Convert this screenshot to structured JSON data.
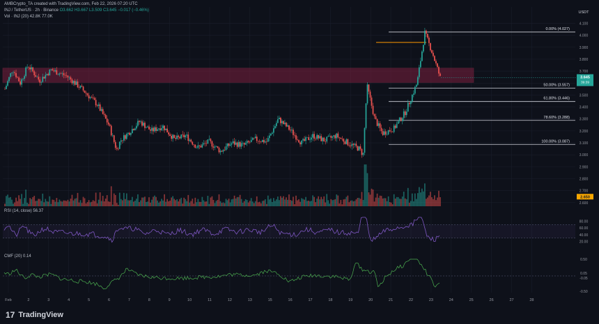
{
  "header": {
    "author_line": "AMBCrypto_TA created with TradingView.com, Feb 22, 2026 07:20 UTC",
    "symbol_line": "INJ / TetherUS · 2h · Binance",
    "ohlc": "O3.662 H3.667 L3.509 C3.645 −0.017 (−0.46%)",
    "vol_line": "Vol · INJ (20)  42.8K  77.0K",
    "rsi_label": "RSI (14, close)  56.37",
    "cmf_label": "CMF (20)  0.14",
    "currency": "USDT"
  },
  "brand": {
    "logo": "17",
    "name": "TradingView"
  },
  "colors": {
    "bg": "#0e111a",
    "up": "#26a69a",
    "down": "#ef5350",
    "zone": "#7a1f3d",
    "fib_line": "#d1d4dc",
    "fib_top": "#ff9800",
    "rsi": "#7e57c2",
    "cmf": "#4caf50"
  },
  "chart_data": {
    "type": "candlestick",
    "x_axis": [
      "Feb",
      "2",
      "3",
      "4",
      "5",
      "6",
      "7",
      "8",
      "9",
      "10",
      "11",
      "12",
      "13",
      "15",
      "16",
      "17",
      "18",
      "19",
      "20",
      "21",
      "22",
      "23",
      "24",
      "25",
      "26",
      "27",
      "28"
    ],
    "y_ticks": [
      "4.100",
      "4.000",
      "3.900",
      "3.800",
      "3.700",
      "3.600",
      "3.500",
      "3.400",
      "3.300",
      "3.200",
      "3.100",
      "3.000",
      "2.900",
      "2.800",
      "2.700",
      "2.600"
    ],
    "ylim": [
      2.57,
      4.12
    ],
    "price_tag": "3.645",
    "price_tag_sub": "39:39",
    "low_tag": "2.650",
    "supply_zone": [
      3.605,
      3.725
    ],
    "price_path": [
      [
        0,
        3.55
      ],
      [
        2,
        3.72
      ],
      [
        4,
        3.6
      ],
      [
        6,
        3.75
      ],
      [
        9,
        3.62
      ],
      [
        12,
        3.71
      ],
      [
        16,
        3.66
      ],
      [
        20,
        3.55
      ],
      [
        24,
        3.42
      ],
      [
        27,
        3.25
      ],
      [
        29,
        3.04
      ],
      [
        30,
        3.12
      ],
      [
        32,
        3.18
      ],
      [
        35,
        3.28
      ],
      [
        38,
        3.2
      ],
      [
        41,
        3.24
      ],
      [
        44,
        3.13
      ],
      [
        47,
        3.16
      ],
      [
        50,
        3.06
      ],
      [
        53,
        3.11
      ],
      [
        56,
        3.03
      ],
      [
        59,
        3.1
      ],
      [
        62,
        3.08
      ],
      [
        65,
        3.13
      ],
      [
        68,
        3.11
      ],
      [
        71,
        3.3
      ],
      [
        74,
        3.21
      ],
      [
        77,
        3.1
      ],
      [
        80,
        3.16
      ],
      [
        83,
        3.12
      ],
      [
        86,
        3.16
      ],
      [
        89,
        3.1
      ],
      [
        92,
        3.05
      ],
      [
        93,
        3.0
      ],
      [
        94,
        3.58
      ],
      [
        96,
        3.3
      ],
      [
        98,
        3.18
      ],
      [
        101,
        3.22
      ],
      [
        104,
        3.36
      ],
      [
        107,
        3.6
      ],
      [
        109,
        4.02
      ],
      [
        111,
        3.85
      ],
      [
        113,
        3.645
      ]
    ],
    "fib_levels": [
      {
        "label": "0.00% (4.027)",
        "value": 4.027
      },
      {
        "label": "50.00% (3.557)",
        "value": 3.557
      },
      {
        "label": "61.80% (3.446)",
        "value": 3.446
      },
      {
        "label": "78.60% (3.288)",
        "value": 3.288
      },
      {
        "label": "100.00% (3.087)",
        "value": 3.087
      }
    ],
    "fib_top_level": 3.94,
    "rsi": {
      "ticks": [
        "80.00",
        "60.00",
        "40.00",
        "20.00"
      ],
      "levels": [
        70,
        30
      ]
    },
    "cmf": {
      "ticks": [
        "0.50",
        "0.05",
        "-0.05",
        "-0.50"
      ]
    }
  }
}
